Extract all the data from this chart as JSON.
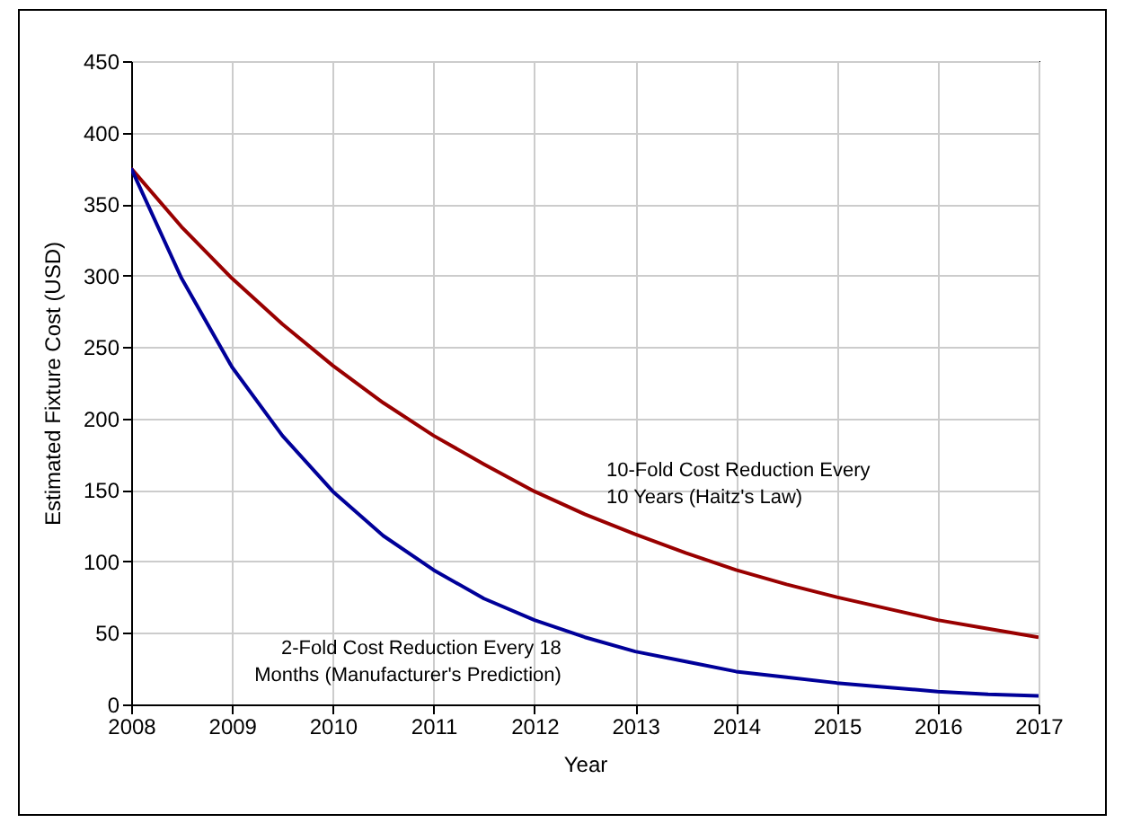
{
  "chart_data": {
    "type": "line",
    "xlabel": "Year",
    "ylabel": "Estimated Fixture Cost (USD)",
    "x": [
      2008,
      2008.5,
      2009,
      2009.5,
      2010,
      2010.5,
      2011,
      2011.5,
      2012,
      2012.5,
      2013,
      2013.5,
      2014,
      2014.5,
      2015,
      2015.5,
      2016,
      2016.5,
      2017
    ],
    "series": [
      {
        "name": "10-Fold Cost Reduction Every 10 Years (Haitz's Law)",
        "color": "#990000",
        "values": [
          375,
          334,
          298,
          266,
          237,
          211,
          188,
          168,
          149,
          133,
          119,
          106,
          94,
          84,
          75,
          67,
          59,
          53,
          47
        ]
      },
      {
        "name": "2-Fold Cost Reduction Every 18 Months (Manufacturer's Prediction)",
        "color": "#000099",
        "values": [
          375,
          298,
          236,
          188,
          149,
          118,
          94,
          74,
          59,
          47,
          37,
          30,
          23,
          19,
          15,
          12,
          9,
          7,
          6
        ]
      }
    ],
    "xlim": [
      2008,
      2017
    ],
    "xticks": [
      2008,
      2009,
      2010,
      2011,
      2012,
      2013,
      2014,
      2015,
      2016,
      2017
    ],
    "ylim": [
      0,
      450
    ],
    "yticks": [
      0,
      50,
      100,
      150,
      200,
      250,
      300,
      350,
      400,
      450
    ],
    "grid": true,
    "marker": "none",
    "line_style": "solid",
    "legend": false
  }
}
